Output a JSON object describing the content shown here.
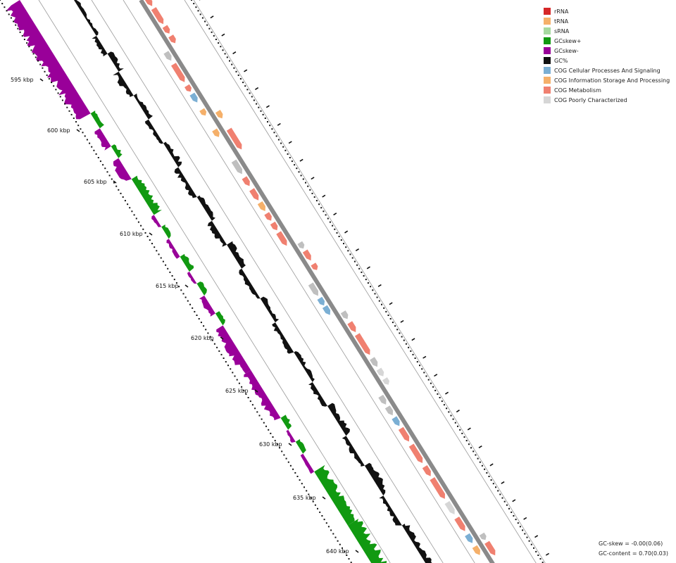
{
  "legend": [
    {
      "label": "rRNA",
      "color": "#d62728"
    },
    {
      "label": "tRNA",
      "color": "#f5b06a"
    },
    {
      "label": "sRNA",
      "color": "#a6d9a0"
    },
    {
      "label": "GCskew+",
      "color": "#119911"
    },
    {
      "label": "GCskew-",
      "color": "#990099"
    },
    {
      "label": "GC%",
      "color": "#111111"
    },
    {
      "label": "COG Cellular Processes And Signaling",
      "color": "#7bafd4"
    },
    {
      "label": "COG Information Storage And Processing",
      "color": "#f5b06a"
    },
    {
      "label": "COG Metabolism",
      "color": "#f08070"
    },
    {
      "label": "COG Poorly Characterized",
      "color": "#d6d6d6"
    }
  ],
  "kbp_labels": [
    "595 kbp",
    "600 kbp",
    "605 kbp",
    "610 kbp",
    "615 kbp",
    "620 kbp",
    "625 kbp",
    "630 kbp",
    "635 kbp",
    "640 kbp"
  ],
  "stats": {
    "gc_skew": "GC-skew = -0.00(0.06)",
    "gc_content": "GC-content = 0.70(0.03)"
  },
  "colors": {
    "gcskew_pos": "#119911",
    "gcskew_neg": "#990099",
    "gc_content": "#111111",
    "backbone": "#8a8a8a",
    "ring_line": "#9a9a9a",
    "cog_metabolism": "#f08070",
    "cog_info": "#f5b06a",
    "cog_cellular": "#7bafd4",
    "cog_poor": "#d6d6d6",
    "cog_poor_dark": "#bfbfbf"
  }
}
